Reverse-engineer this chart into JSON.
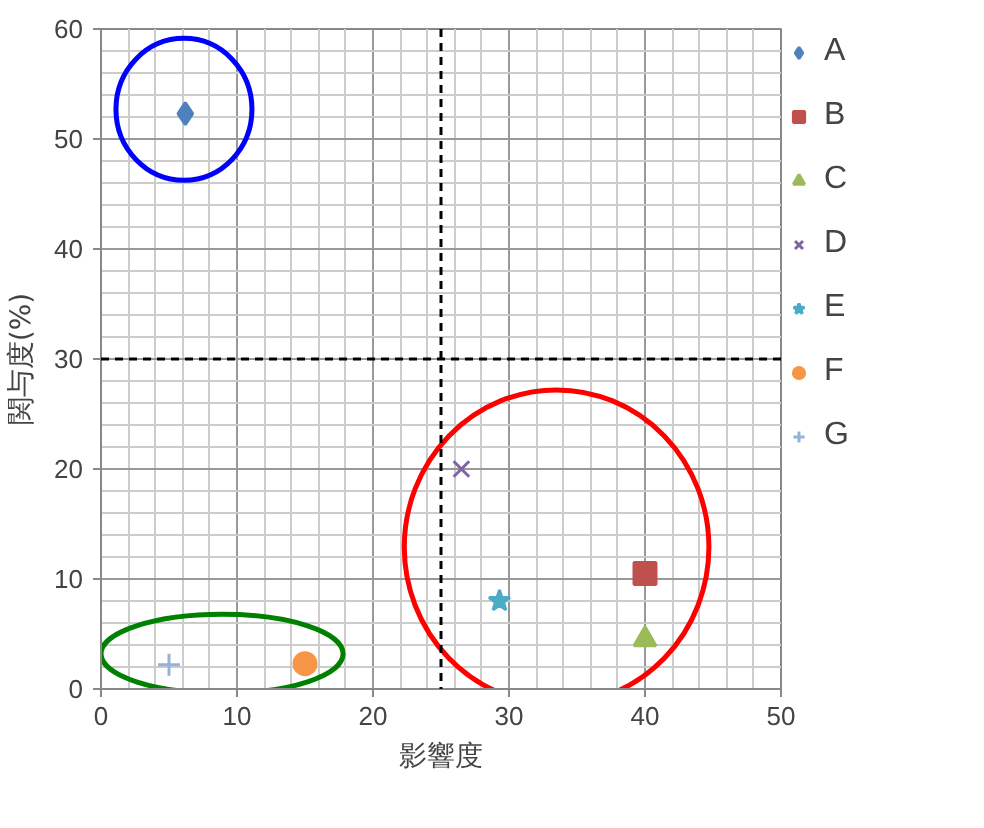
{
  "chart_data": {
    "type": "scatter",
    "xlabel": "影響度",
    "ylabel": "関与度(%)",
    "xlim": [
      0,
      50
    ],
    "ylim": [
      0,
      60
    ],
    "xticks": [
      0,
      10,
      20,
      30,
      40,
      50
    ],
    "yticks": [
      0,
      10,
      20,
      30,
      40,
      50,
      60
    ],
    "grid": true,
    "legend": "right",
    "series": [
      {
        "name": "A",
        "color": "#4f81bd",
        "marker": "diamond",
        "x": [
          6.2
        ],
        "values": [
          52.3
        ]
      },
      {
        "name": "B",
        "color": "#c0504d",
        "marker": "square",
        "x": [
          40
        ],
        "values": [
          10.5
        ]
      },
      {
        "name": "C",
        "color": "#9bbb59",
        "marker": "triangle",
        "x": [
          40
        ],
        "values": [
          4.5
        ]
      },
      {
        "name": "D",
        "color": "#8064a2",
        "marker": "x",
        "x": [
          26.5
        ],
        "values": [
          20
        ]
      },
      {
        "name": "E",
        "color": "#4bacc6",
        "marker": "star",
        "x": [
          29.3
        ],
        "values": [
          8
        ]
      },
      {
        "name": "F",
        "color": "#f79646",
        "marker": "circle",
        "x": [
          15
        ],
        "values": [
          2.3
        ]
      },
      {
        "name": "G",
        "color": "#95b3d7",
        "marker": "cross",
        "x": [
          5
        ],
        "values": [
          2.2
        ]
      }
    ],
    "ref_lines": [
      {
        "axis": "x",
        "value": 25,
        "color": "#000000",
        "line_style": "dashed"
      },
      {
        "axis": "y",
        "value": 30,
        "color": "#000000",
        "line_style": "dashed"
      }
    ]
  }
}
